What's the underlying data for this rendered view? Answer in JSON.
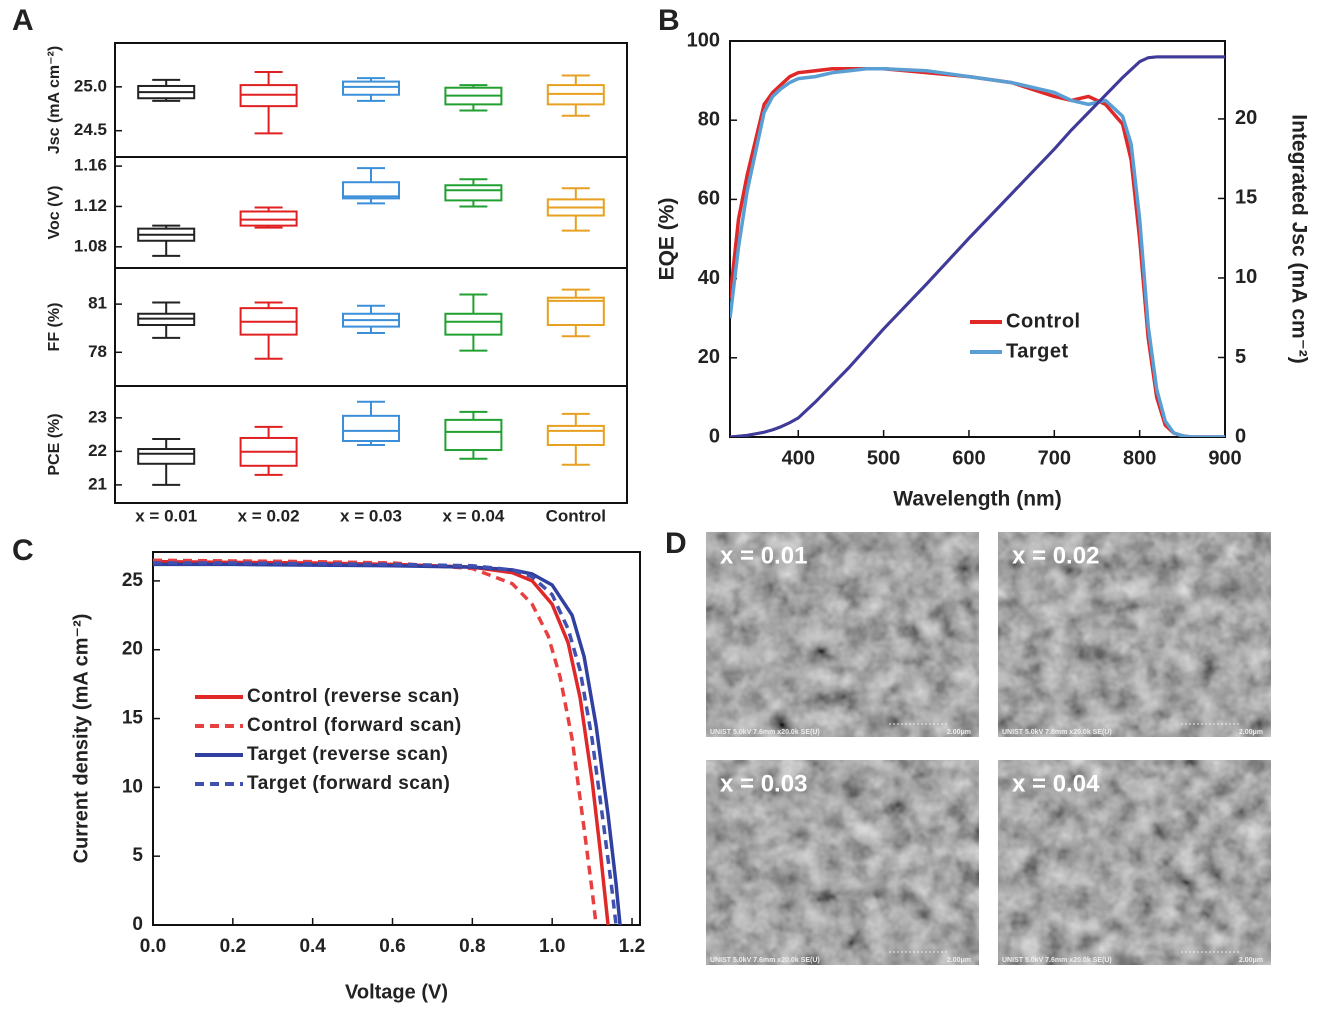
{
  "chart_data": [
    {
      "type": "box",
      "panel_label": "A",
      "categories": [
        "x = 0.01",
        "x = 0.02",
        "x = 0.03",
        "x = 0.04",
        "Control"
      ],
      "colors": [
        "#222222",
        "#e02020",
        "#3a8fd8",
        "#20a030",
        "#e8a020"
      ],
      "panels": [
        {
          "ylabel": "Jsc (mA cm⁻²)",
          "ylim": [
            24.2,
            25.5
          ],
          "yticks": [
            {
              "value": 25,
              "label": "25.0"
            },
            24.5
          ],
          "boxes": [
            {
              "min": 24.84,
              "q1": 24.87,
              "median": 24.94,
              "q3": 25.01,
              "max": 25.08
            },
            {
              "min": 24.47,
              "q1": 24.78,
              "median": 24.91,
              "q3": 25.02,
              "max": 25.17
            },
            {
              "min": 24.84,
              "q1": 24.91,
              "median": 25.0,
              "q3": 25.06,
              "max": 25.1
            },
            {
              "min": 24.73,
              "q1": 24.8,
              "median": 24.9,
              "q3": 24.99,
              "max": 25.02
            },
            {
              "min": 24.67,
              "q1": 24.8,
              "median": 24.92,
              "q3": 25.02,
              "max": 25.13
            }
          ]
        },
        {
          "ylabel": "Voc (V)",
          "ylim": [
            1.059,
            1.169
          ],
          "yticks": [
            1.16,
            1.12,
            1.08
          ],
          "boxes": [
            {
              "min": 1.071,
              "q1": 1.086,
              "median": 1.092,
              "q3": 1.098,
              "max": 1.101
            },
            {
              "min": 1.099,
              "q1": 1.101,
              "median": 1.107,
              "q3": 1.115,
              "max": 1.119
            },
            {
              "min": 1.123,
              "q1": 1.128,
              "median": 1.13,
              "q3": 1.144,
              "max": 1.158
            },
            {
              "min": 1.12,
              "q1": 1.126,
              "median": 1.136,
              "q3": 1.141,
              "max": 1.147
            },
            {
              "min": 1.096,
              "q1": 1.111,
              "median": 1.119,
              "q3": 1.127,
              "max": 1.138
            }
          ]
        },
        {
          "ylabel": "FF (%)",
          "ylim": [
            75.9,
            83.25
          ],
          "yticks": [
            81,
            78
          ],
          "boxes": [
            {
              "min": 78.9,
              "q1": 79.7,
              "median": 80.1,
              "q3": 80.4,
              "max": 81.1
            },
            {
              "min": 77.6,
              "q1": 79.1,
              "median": 79.9,
              "q3": 80.75,
              "max": 81.1
            },
            {
              "min": 79.2,
              "q1": 79.6,
              "median": 80.0,
              "q3": 80.4,
              "max": 80.9
            },
            {
              "min": 78.1,
              "q1": 79.1,
              "median": 79.9,
              "q3": 80.4,
              "max": 81.6
            },
            {
              "min": 79.0,
              "q1": 79.7,
              "median": 81.2,
              "q3": 81.4,
              "max": 81.9
            }
          ]
        },
        {
          "ylabel": "PCE (%)",
          "ylim": [
            20.46,
            23.95
          ],
          "yticks": [
            23,
            22,
            21
          ],
          "boxes": [
            {
              "min": 21.0,
              "q1": 21.63,
              "median": 21.93,
              "q3": 22.07,
              "max": 22.37
            },
            {
              "min": 21.3,
              "q1": 21.57,
              "median": 21.99,
              "q3": 22.4,
              "max": 22.73
            },
            {
              "min": 22.19,
              "q1": 22.31,
              "median": 22.61,
              "q3": 23.06,
              "max": 23.48
            },
            {
              "min": 21.78,
              "q1": 22.04,
              "median": 22.58,
              "q3": 22.94,
              "max": 23.18
            },
            {
              "min": 21.6,
              "q1": 22.19,
              "median": 22.61,
              "q3": 22.76,
              "max": 23.12
            }
          ]
        }
      ]
    },
    {
      "type": "line",
      "panel_label": "B",
      "xlabel": "Wavelength (nm)",
      "ylabel": "EQE (%)",
      "y2label": "Integrated Jsc (mA cm⁻²)",
      "xlim": [
        320,
        900
      ],
      "xticks": [
        400,
        500,
        600,
        700,
        800,
        900
      ],
      "ylim": [
        0,
        100
      ],
      "yticks": [
        0,
        20,
        40,
        60,
        80,
        100
      ],
      "y2lim": [
        0,
        24.9
      ],
      "y2ticks": [
        0,
        5,
        10,
        15,
        20
      ],
      "legend_loc": "center right",
      "x": [
        320,
        330,
        340,
        350,
        360,
        370,
        380,
        390,
        400,
        420,
        440,
        460,
        480,
        500,
        550,
        600,
        650,
        700,
        720,
        740,
        760,
        780,
        790,
        800,
        810,
        820,
        830,
        840,
        850,
        860,
        880,
        900
      ],
      "series": [
        {
          "name": "Control",
          "color": "#e02828",
          "values": [
            35,
            55,
            66,
            75,
            84,
            87,
            89,
            91,
            92,
            92.5,
            93,
            93,
            93,
            93,
            92,
            91,
            89.5,
            86,
            85,
            86,
            84,
            79,
            70,
            50,
            25,
            10,
            3,
            1,
            0.3,
            0,
            0,
            0
          ]
        },
        {
          "name": "Target",
          "color": "#5a9fd4",
          "values": [
            30,
            48,
            62,
            72,
            82,
            86,
            88,
            89.5,
            90.5,
            91,
            92,
            92.5,
            93,
            93,
            92.5,
            91,
            89.5,
            87,
            85,
            84,
            85,
            81,
            74,
            55,
            28,
            12,
            4,
            1,
            0.3,
            0,
            0,
            0
          ]
        },
        {
          "color": "#c04060",
          "axis": "y2",
          "values": [
            0,
            0.05,
            0.1,
            0.2,
            0.3,
            0.45,
            0.65,
            0.9,
            1.2,
            2.2,
            3.3,
            4.4,
            5.6,
            6.8,
            9.6,
            12.5,
            15.3,
            18.1,
            19.3,
            20.4,
            21.5,
            22.6,
            23.1,
            23.6,
            23.85,
            23.9,
            23.9,
            23.9,
            23.9,
            23.9,
            23.9,
            23.9
          ]
        },
        {
          "color": "#3c3c9c",
          "axis": "y2",
          "values": [
            0,
            0.05,
            0.1,
            0.2,
            0.3,
            0.45,
            0.65,
            0.9,
            1.2,
            2.2,
            3.3,
            4.4,
            5.6,
            6.8,
            9.6,
            12.5,
            15.3,
            18.1,
            19.3,
            20.4,
            21.5,
            22.6,
            23.1,
            23.6,
            23.85,
            23.9,
            23.9,
            23.9,
            23.9,
            23.9,
            23.9,
            23.9
          ]
        }
      ]
    },
    {
      "type": "line",
      "panel_label": "C",
      "xlabel": "Voltage (V)",
      "ylabel": "Current density (mA cm⁻²)",
      "xlim": [
        0,
        1.22
      ],
      "xticks": [
        {
          "value": 0,
          "label": "0.0"
        },
        0.2,
        0.4,
        0.6,
        0.8,
        {
          "value": 1,
          "label": "1.0"
        },
        1.2
      ],
      "ylim": [
        0,
        27.1
      ],
      "yticks": [
        0,
        5,
        10,
        15,
        20,
        25
      ],
      "legend_loc": "center left",
      "series": [
        {
          "name": "Control (reverse scan)",
          "color": "#e02828",
          "dash": false,
          "x": [
            0,
            0.2,
            0.4,
            0.6,
            0.8,
            0.9,
            0.95,
            1.0,
            1.04,
            1.07,
            1.1,
            1.12,
            1.14
          ],
          "values": [
            26.4,
            26.35,
            26.3,
            26.2,
            26.0,
            25.6,
            25.0,
            23.3,
            20.5,
            16.5,
            10.5,
            5.5,
            0
          ]
        },
        {
          "name": "Control (forward scan)",
          "color": "#e84040",
          "dash": true,
          "x": [
            0,
            0.2,
            0.4,
            0.6,
            0.8,
            0.9,
            0.95,
            0.99,
            1.02,
            1.05,
            1.08,
            1.1,
            1.11
          ],
          "values": [
            26.5,
            26.45,
            26.4,
            26.3,
            25.9,
            24.8,
            23.3,
            21,
            18,
            13.5,
            7,
            2.5,
            0
          ]
        },
        {
          "name": "Target (reverse scan)",
          "color": "#3040a0",
          "dash": false,
          "x": [
            0,
            0.2,
            0.4,
            0.6,
            0.8,
            0.9,
            0.95,
            1.0,
            1.05,
            1.08,
            1.11,
            1.14,
            1.16,
            1.17
          ],
          "values": [
            26.2,
            26.2,
            26.15,
            26.1,
            26.0,
            25.8,
            25.5,
            24.7,
            22.5,
            19.5,
            14.5,
            8,
            3,
            0
          ]
        },
        {
          "name": "Target (forward scan)",
          "color": "#4050b0",
          "dash": true,
          "x": [
            0,
            0.2,
            0.4,
            0.6,
            0.8,
            0.9,
            0.95,
            1.0,
            1.04,
            1.07,
            1.1,
            1.13,
            1.15,
            1.16
          ],
          "values": [
            26.3,
            26.3,
            26.25,
            26.2,
            26.1,
            25.8,
            25.3,
            24.0,
            21.5,
            18.5,
            13.5,
            7,
            2.5,
            0
          ]
        }
      ]
    }
  ],
  "panel_d": {
    "panel_label": "D",
    "images": [
      {
        "label": "x = 0.01",
        "info": "UNIST 5.0kV 7.6mm x20.0k SE(U)",
        "scale": "2.00μm"
      },
      {
        "label": "x = 0.02",
        "info": "UNIST 5.0kV 7.8mm x20.0k SE(U)",
        "scale": "2.00μm"
      },
      {
        "label": "x = 0.03",
        "info": "UNIST 5.0kV 7.6mm x20.0k SE(U)",
        "scale": "2.00μm"
      },
      {
        "label": "x = 0.04",
        "info": "UNIST 5.0kV 7.6mm x20.0k SE(U)",
        "scale": "2.00μm"
      }
    ]
  }
}
